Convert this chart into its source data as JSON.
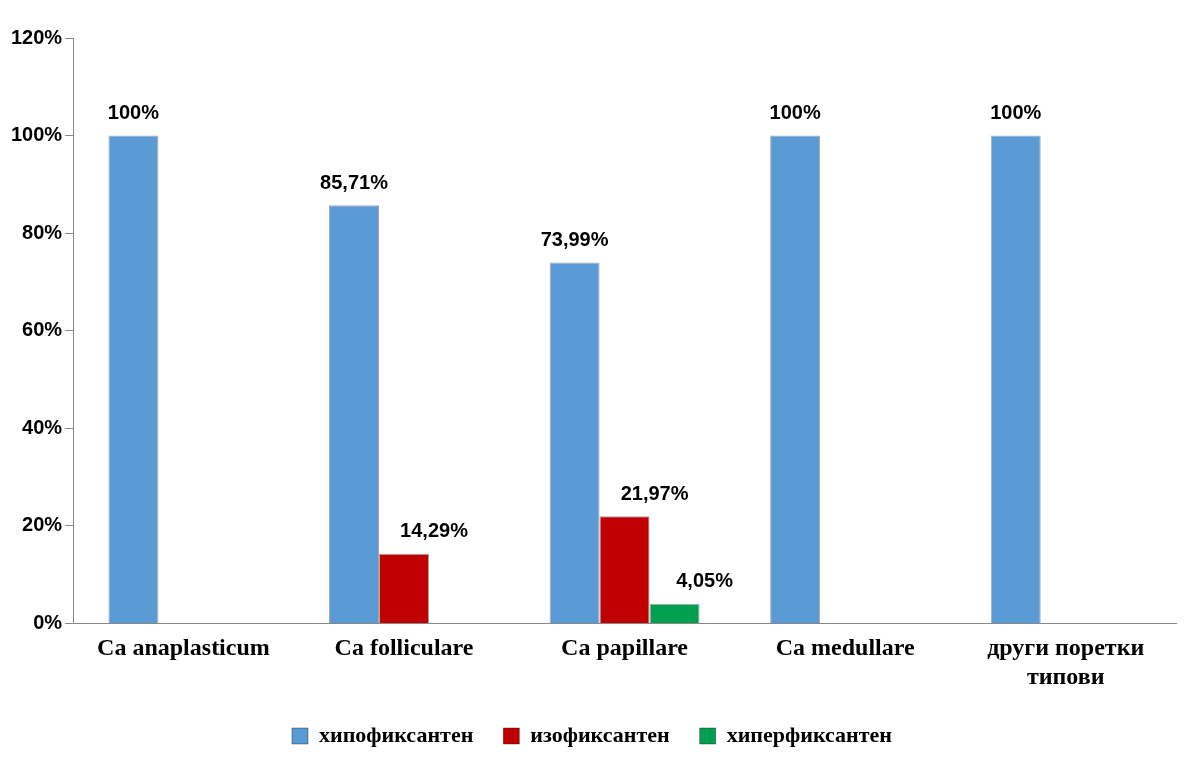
{
  "chart_data": {
    "type": "bar",
    "categories": [
      "Ca anaplasticum",
      "Ca folliculare",
      "Ca papillare",
      "Ca medullare",
      "други поретки типови"
    ],
    "series": [
      {
        "name": "хипофиксантен",
        "color": "#5b9bd5",
        "values": [
          100,
          85.71,
          73.99,
          100,
          100
        ],
        "value_labels": [
          "100%",
          "85,71%",
          "73,99%",
          "100%",
          "100%"
        ]
      },
      {
        "name": "изофиксантен",
        "color": "#c00000",
        "values": [
          null,
          14.29,
          21.97,
          null,
          null
        ],
        "value_labels": [
          null,
          "14,29%",
          "21,97%",
          null,
          null
        ]
      },
      {
        "name": "хиперфиксантен",
        "color": "#00a050",
        "values": [
          null,
          null,
          4.05,
          null,
          null
        ],
        "value_labels": [
          null,
          null,
          "4,05%",
          null,
          null
        ]
      }
    ],
    "ylim": [
      0,
      120
    ],
    "yticks": [
      {
        "value": 0,
        "label": "0%"
      },
      {
        "value": 20,
        "label": "20%"
      },
      {
        "value": 40,
        "label": "40%"
      },
      {
        "value": 60,
        "label": "60%"
      },
      {
        "value": 80,
        "label": "80%"
      },
      {
        "value": 100,
        "label": "100%"
      },
      {
        "value": 120,
        "label": "120%"
      }
    ],
    "grid": false,
    "legend": "bottom"
  }
}
